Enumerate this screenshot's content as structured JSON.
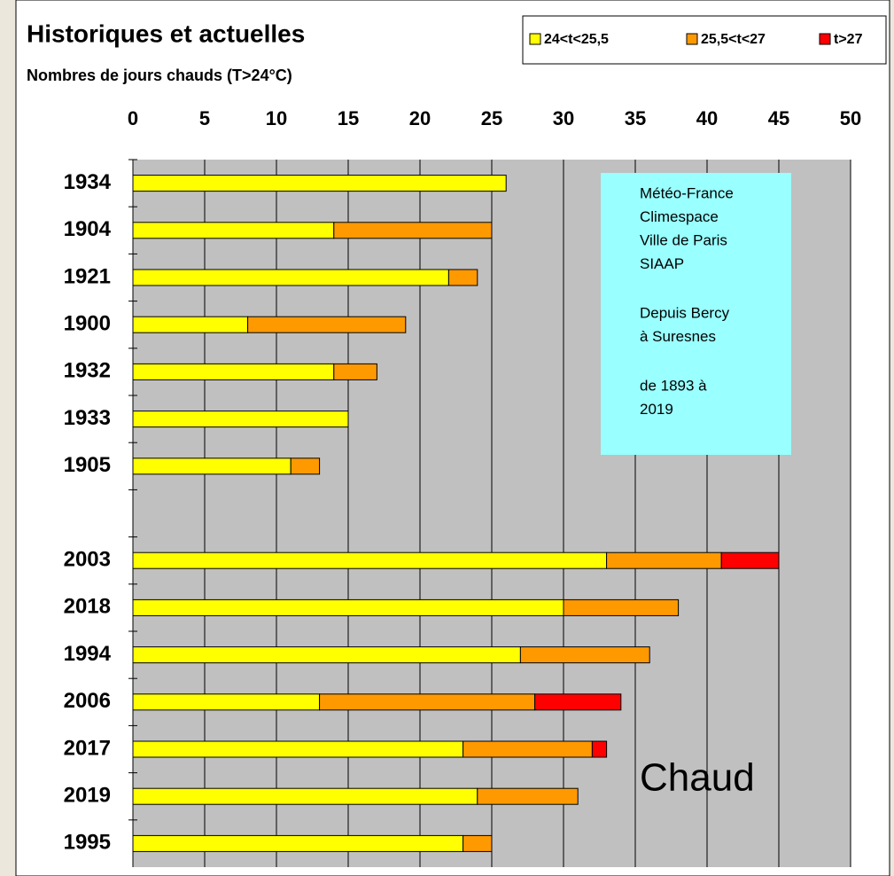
{
  "chart_data": {
    "type": "stacked-barh",
    "title": "Historiques et actuelles",
    "subtitle": "Nombres de jours chauds (T>24°C)",
    "categories": [
      "1934",
      "1904",
      "1921",
      "1900",
      "1932",
      "1933",
      "1905",
      null,
      "2003",
      "2018",
      "1994",
      "2006",
      "2017",
      "2019",
      "1995"
    ],
    "series": [
      {
        "name": "24<t<25,5",
        "color": "#ffff00",
        "values": [
          26,
          14,
          22,
          8,
          14,
          15,
          11,
          null,
          33,
          30,
          27,
          13,
          23,
          24,
          23
        ]
      },
      {
        "name": "25,5<t<27",
        "color": "#ff9900",
        "values": [
          0,
          11,
          2,
          11,
          3,
          0,
          2,
          null,
          8,
          8,
          9,
          15,
          9,
          7,
          2
        ]
      },
      {
        "name": "t>27",
        "color": "#ff0000",
        "values": [
          0,
          0,
          0,
          0,
          0,
          0,
          0,
          null,
          4,
          0,
          0,
          6,
          1,
          0,
          0
        ]
      }
    ],
    "xlim": [
      0,
      50
    ],
    "xticks": [
      0,
      5,
      10,
      15,
      20,
      25,
      30,
      35,
      40,
      45,
      50
    ],
    "grid": true,
    "legend": "top-right",
    "annotation": [
      [
        "Météo-France",
        "Climespace",
        "Ville de Paris",
        "SIAAP"
      ],
      [
        "Depuis Bercy",
        "à Suresnes"
      ],
      [
        "de 1893 à",
        "2019"
      ]
    ],
    "label": "Chaud"
  }
}
